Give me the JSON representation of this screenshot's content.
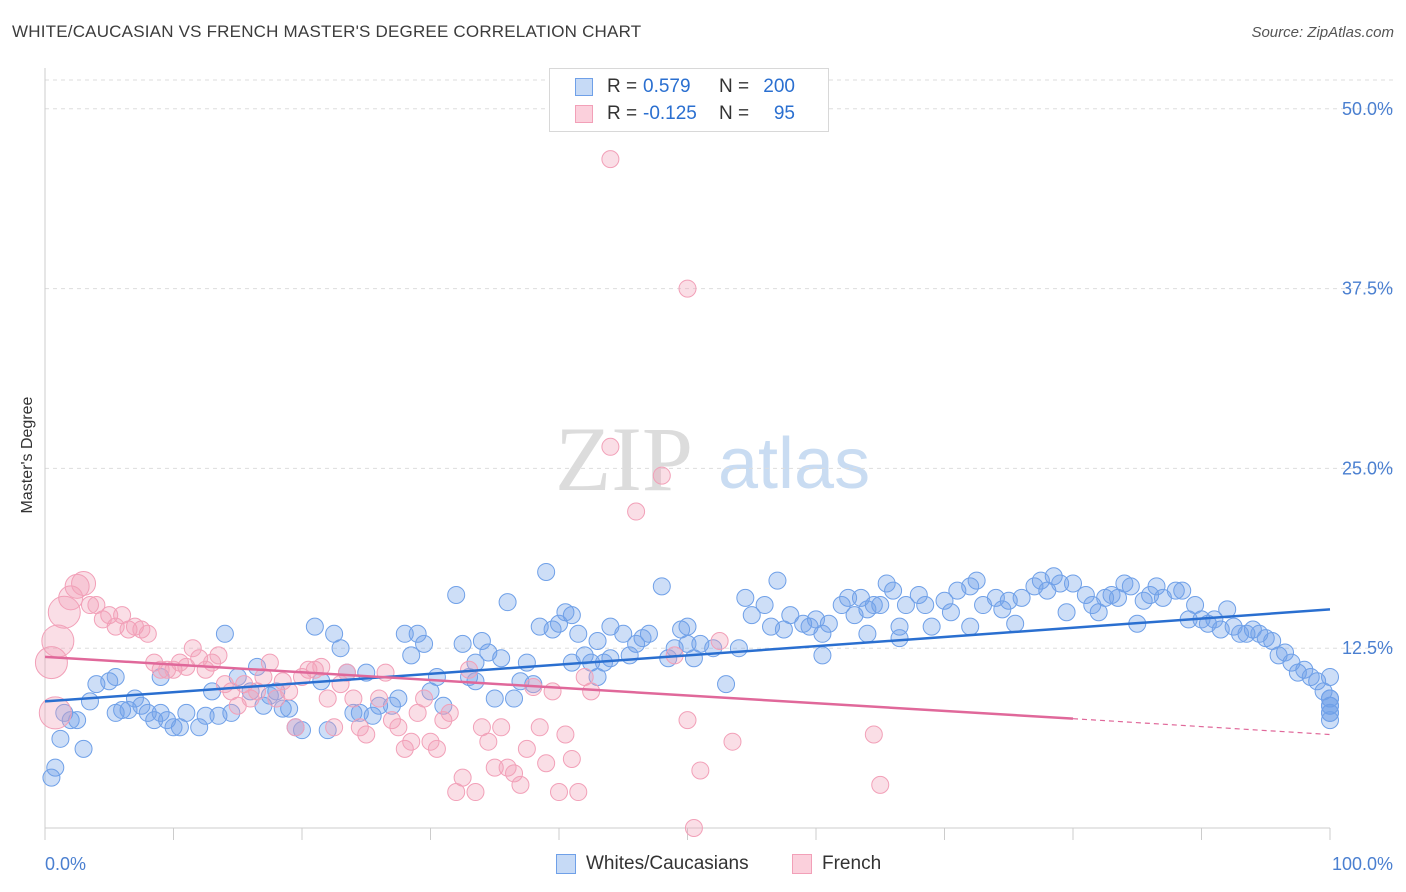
{
  "title": "WHITE/CAUCASIAN VS FRENCH MASTER'S DEGREE CORRELATION CHART",
  "source": "Source: ZipAtlas.com",
  "watermark": {
    "zip": "ZIP",
    "atlas": "atlas"
  },
  "legend": {
    "rows": [
      {
        "r_label": "R =",
        "r_value": "0.579",
        "n_label": "N =",
        "n_value": "200",
        "color": "#6fa0e8"
      },
      {
        "r_label": "R =",
        "r_value": "-0.125",
        "n_label": "N =",
        "n_value": "95",
        "color": "#f2a0b8"
      }
    ]
  },
  "chart_data": {
    "type": "scatter",
    "title": "WHITE/CAUCASIAN VS FRENCH MASTER'S DEGREE CORRELATION CHART",
    "xlabel": "",
    "ylabel": "Master's Degree",
    "xlim": [
      0,
      100
    ],
    "ylim": [
      0,
      52
    ],
    "x_tick_labels": [
      "0.0%",
      "100.0%"
    ],
    "y_ticks": [
      12.5,
      25.0,
      37.5,
      50.0
    ],
    "y_tick_labels": [
      "12.5%",
      "25.0%",
      "37.5%",
      "50.0%"
    ],
    "grid": "horizontal dashed",
    "legend_position": "top-center",
    "colors": {
      "blue": "#6fa0e8",
      "blue_line": "#2a6fd0",
      "pink": "#f2a0b8",
      "pink_line": "#e0689a",
      "tick_text": "#4a7fd0"
    },
    "series": [
      {
        "name": "Whites/Caucasians",
        "color": "#6fa0e8",
        "trend": {
          "x0": 0,
          "y0": 8.8,
          "x1": 100,
          "y1": 15.2
        },
        "points": [
          [
            0.5,
            3.5
          ],
          [
            0.8,
            4.2
          ],
          [
            1.2,
            6.2
          ],
          [
            1.5,
            8
          ],
          [
            2,
            7.5
          ],
          [
            2.5,
            7.5
          ],
          [
            3,
            5.5
          ],
          [
            3.5,
            8.8
          ],
          [
            4,
            10
          ],
          [
            5,
            10.2
          ],
          [
            5.5,
            8
          ],
          [
            6,
            8.2
          ],
          [
            6.5,
            8.2
          ],
          [
            7,
            9
          ],
          [
            7.5,
            8.5
          ],
          [
            8,
            8
          ],
          [
            8.5,
            7.5
          ],
          [
            9,
            8
          ],
          [
            9.5,
            7.5
          ],
          [
            10,
            7
          ],
          [
            10.5,
            7
          ],
          [
            11,
            8
          ],
          [
            12,
            7
          ],
          [
            12.5,
            7.8
          ],
          [
            13,
            9.5
          ],
          [
            13.5,
            7.8
          ],
          [
            14,
            13.5
          ],
          [
            14.5,
            8
          ],
          [
            15,
            10.5
          ],
          [
            16,
            9.5
          ],
          [
            16.5,
            11.2
          ],
          [
            17,
            8.5
          ],
          [
            17.5,
            9.2
          ],
          [
            18,
            9.5
          ],
          [
            18.5,
            8.3
          ],
          [
            19,
            8.3
          ],
          [
            19.5,
            7
          ],
          [
            20,
            6.8
          ],
          [
            21,
            14
          ],
          [
            21.5,
            10.2
          ],
          [
            22,
            6.8
          ],
          [
            22.5,
            13.5
          ],
          [
            23,
            12.5
          ],
          [
            23.5,
            10.8
          ],
          [
            24,
            8
          ],
          [
            24.5,
            8
          ],
          [
            25,
            10.8
          ],
          [
            25.5,
            7.8
          ],
          [
            26,
            8.5
          ],
          [
            27,
            8.5
          ],
          [
            27.5,
            9
          ],
          [
            28,
            13.5
          ],
          [
            28.5,
            12
          ],
          [
            29,
            13.5
          ],
          [
            29.5,
            12.8
          ],
          [
            30,
            9.5
          ],
          [
            30.5,
            10.5
          ],
          [
            31,
            8.5
          ],
          [
            32,
            16.2
          ],
          [
            32.5,
            12.8
          ],
          [
            33,
            10.5
          ],
          [
            33.5,
            10.2
          ],
          [
            34,
            13
          ],
          [
            34.5,
            12.2
          ],
          [
            35,
            9
          ],
          [
            35.5,
            11.8
          ],
          [
            36,
            15.7
          ],
          [
            36.5,
            9
          ],
          [
            37,
            10.2
          ],
          [
            37.5,
            11.5
          ],
          [
            38,
            10
          ],
          [
            38.5,
            14
          ],
          [
            39,
            17.8
          ],
          [
            39.5,
            13.8
          ],
          [
            40,
            14.2
          ],
          [
            40.5,
            15
          ],
          [
            41,
            14.8
          ],
          [
            41.5,
            13.5
          ],
          [
            42,
            12
          ],
          [
            42.5,
            11.5
          ],
          [
            43,
            10.5
          ],
          [
            43.5,
            11.5
          ],
          [
            44,
            11.8
          ],
          [
            45,
            13.5
          ],
          [
            45.5,
            12
          ],
          [
            46,
            12.8
          ],
          [
            46.5,
            13.2
          ],
          [
            47,
            13.5
          ],
          [
            48,
            16.8
          ],
          [
            48.5,
            11.8
          ],
          [
            49,
            12.5
          ],
          [
            49.5,
            13.8
          ],
          [
            50,
            14
          ],
          [
            50.5,
            11.8
          ],
          [
            51,
            12.8
          ],
          [
            52,
            12.5
          ],
          [
            53,
            10
          ],
          [
            54,
            12.5
          ],
          [
            54.5,
            16
          ],
          [
            55,
            14.8
          ],
          [
            56,
            15.5
          ],
          [
            56.5,
            14
          ],
          [
            57,
            17.2
          ],
          [
            58,
            14.8
          ],
          [
            59,
            14.2
          ],
          [
            59.5,
            14
          ],
          [
            60,
            14.5
          ],
          [
            60.5,
            13.5
          ],
          [
            61,
            14.2
          ],
          [
            62,
            15.5
          ],
          [
            62.5,
            16
          ],
          [
            63,
            14.8
          ],
          [
            63.5,
            16
          ],
          [
            64,
            15.2
          ],
          [
            64.5,
            15.5
          ],
          [
            65,
            15.5
          ],
          [
            65.5,
            17
          ],
          [
            66,
            16.5
          ],
          [
            66.5,
            14
          ],
          [
            67,
            15.5
          ],
          [
            68,
            16.2
          ],
          [
            68.5,
            15.5
          ],
          [
            69,
            14
          ],
          [
            70,
            15.8
          ],
          [
            70.5,
            15
          ],
          [
            71,
            16.5
          ],
          [
            72,
            16.8
          ],
          [
            72.5,
            17.2
          ],
          [
            73,
            15.5
          ],
          [
            74,
            16
          ],
          [
            74.5,
            15.2
          ],
          [
            75,
            15.8
          ],
          [
            75.5,
            14.2
          ],
          [
            76,
            16
          ],
          [
            77,
            16.8
          ],
          [
            77.5,
            17.2
          ],
          [
            78,
            16.5
          ],
          [
            78.5,
            17.5
          ],
          [
            79,
            17
          ],
          [
            79.5,
            15
          ],
          [
            80,
            17
          ],
          [
            81,
            16.2
          ],
          [
            81.5,
            15.5
          ],
          [
            82,
            15
          ],
          [
            82.5,
            16
          ],
          [
            83,
            16.2
          ],
          [
            83.5,
            16
          ],
          [
            84,
            17
          ],
          [
            84.5,
            16.8
          ],
          [
            85,
            14.2
          ],
          [
            85.5,
            15.8
          ],
          [
            86,
            16.2
          ],
          [
            86.5,
            16.8
          ],
          [
            87,
            16
          ],
          [
            88,
            16.5
          ],
          [
            88.5,
            16.5
          ],
          [
            89,
            14.5
          ],
          [
            89.5,
            15.5
          ],
          [
            90,
            14.5
          ],
          [
            90.5,
            14.2
          ],
          [
            91,
            14.5
          ],
          [
            91.5,
            13.8
          ],
          [
            92,
            15.2
          ],
          [
            92.5,
            14
          ],
          [
            93,
            13.5
          ],
          [
            93.5,
            13.5
          ],
          [
            94,
            13.8
          ],
          [
            94.5,
            13.5
          ],
          [
            95,
            13.2
          ],
          [
            95.5,
            13
          ],
          [
            96,
            12
          ],
          [
            96.5,
            12.2
          ],
          [
            97,
            11.5
          ],
          [
            97.5,
            10.8
          ],
          [
            98,
            11
          ],
          [
            98.5,
            10.5
          ],
          [
            99,
            10.2
          ],
          [
            99.5,
            9.5
          ],
          [
            100,
            9
          ],
          [
            100.5,
            9
          ],
          [
            101,
            8.5
          ],
          [
            101.5,
            8
          ],
          [
            102,
            8.5
          ],
          [
            102.5,
            8
          ],
          [
            103,
            7.5
          ],
          [
            103.5,
            10.5
          ],
          [
            5.5,
            10.5
          ],
          [
            9,
            10.5
          ],
          [
            64,
            13.5
          ],
          [
            72,
            14
          ],
          [
            57.5,
            13.8
          ],
          [
            60.5,
            12
          ],
          [
            44,
            14
          ],
          [
            66.5,
            13.2
          ],
          [
            43,
            13
          ],
          [
            33.5,
            11.5
          ],
          [
            50,
            12.8
          ],
          [
            41,
            11.5
          ]
        ],
        "trend_line": "solid"
      },
      {
        "name": "French",
        "color": "#f2a0b8",
        "trend": {
          "x0": 0,
          "y0": 11.9,
          "x1": 80,
          "y1": 7.6,
          "dashed_to_x": 100,
          "dashed_to_y": 6.5
        },
        "points": [
          [
            0.5,
            11.5
          ],
          [
            0.8,
            8
          ],
          [
            1,
            13
          ],
          [
            1.5,
            15
          ],
          [
            2,
            16
          ],
          [
            2.5,
            16.8
          ],
          [
            3,
            17
          ],
          [
            3.5,
            15.5
          ],
          [
            4,
            15.5
          ],
          [
            4.5,
            14.5
          ],
          [
            5,
            14.8
          ],
          [
            5.5,
            14
          ],
          [
            6,
            14.8
          ],
          [
            6.5,
            13.8
          ],
          [
            7,
            14
          ],
          [
            7.5,
            13.8
          ],
          [
            8,
            13.5
          ],
          [
            8.5,
            11.5
          ],
          [
            9,
            11
          ],
          [
            9.5,
            11
          ],
          [
            10,
            11
          ],
          [
            10.5,
            11.5
          ],
          [
            11,
            11.2
          ],
          [
            11.5,
            12.5
          ],
          [
            12,
            11.8
          ],
          [
            12.5,
            11
          ],
          [
            13,
            11.5
          ],
          [
            13.5,
            12
          ],
          [
            14,
            10
          ],
          [
            14.5,
            9.5
          ],
          [
            15,
            8.5
          ],
          [
            15.5,
            10
          ],
          [
            16,
            9
          ],
          [
            16.5,
            9.5
          ],
          [
            17,
            10.5
          ],
          [
            17.5,
            11.5
          ],
          [
            18,
            9
          ],
          [
            18.5,
            10.2
          ],
          [
            19,
            9.5
          ],
          [
            19.5,
            7
          ],
          [
            20,
            10.5
          ],
          [
            20.5,
            11
          ],
          [
            21,
            11
          ],
          [
            21.5,
            11.2
          ],
          [
            22,
            9
          ],
          [
            22.5,
            7
          ],
          [
            23,
            10
          ],
          [
            23.5,
            10.8
          ],
          [
            24,
            9
          ],
          [
            24.5,
            7
          ],
          [
            25,
            6.5
          ],
          [
            26,
            9
          ],
          [
            26.5,
            10.8
          ],
          [
            27,
            7.5
          ],
          [
            27.5,
            7
          ],
          [
            28,
            5.5
          ],
          [
            28.5,
            6
          ],
          [
            29,
            8
          ],
          [
            29.5,
            9
          ],
          [
            30,
            6
          ],
          [
            30.5,
            5.5
          ],
          [
            31,
            7.5
          ],
          [
            31.5,
            8
          ],
          [
            32,
            2.5
          ],
          [
            32.5,
            3.5
          ],
          [
            33,
            11
          ],
          [
            33.5,
            2.5
          ],
          [
            34,
            7
          ],
          [
            34.5,
            6
          ],
          [
            35,
            4.2
          ],
          [
            35.5,
            7
          ],
          [
            36,
            4.2
          ],
          [
            36.5,
            3.8
          ],
          [
            37,
            3
          ],
          [
            37.5,
            5.5
          ],
          [
            38,
            9.8
          ],
          [
            38.5,
            7
          ],
          [
            39,
            4.5
          ],
          [
            39.5,
            9.5
          ],
          [
            40,
            2.5
          ],
          [
            40.5,
            6.5
          ],
          [
            41,
            4.8
          ],
          [
            41.5,
            2.5
          ],
          [
            42,
            10.5
          ],
          [
            42.5,
            9.5
          ],
          [
            44,
            46.5
          ],
          [
            44,
            26.5
          ],
          [
            46,
            22
          ],
          [
            48,
            24.5
          ],
          [
            49,
            12
          ],
          [
            50,
            37.5
          ],
          [
            50.5,
            0
          ],
          [
            51,
            4
          ],
          [
            52.5,
            13
          ],
          [
            53.5,
            6
          ],
          [
            64.5,
            6.5
          ],
          [
            65,
            3
          ],
          [
            50,
            7.5
          ]
        ],
        "trend_line": "solid then dashed"
      }
    ],
    "bubble_sizes_note": "a few large pink bubbles near x=0-3"
  },
  "bottom_legend": {
    "items": [
      {
        "label": "Whites/Caucasians",
        "color": "#6fa0e8"
      },
      {
        "label": "French",
        "color": "#f2a0b8"
      }
    ]
  },
  "axis": {
    "x_left": "0.0%",
    "x_right": "100.0%"
  }
}
